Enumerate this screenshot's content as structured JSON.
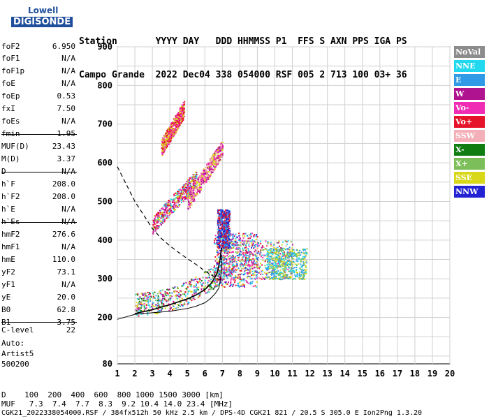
{
  "logo": {
    "line1": "Lowell",
    "line2": "DIGISONDE"
  },
  "header": {
    "labels": "Station       YYYY DAY   DDD HHMMSS P1  FFS S AXN PPS IGA PS",
    "values": "Campo Grande  2022 Dec04 338 054000 RSF 005 2 713 100 03+ 36"
  },
  "params": [
    {
      "key": "foF2",
      "value": "6.950"
    },
    {
      "key": "foF1",
      "value": "N/A"
    },
    {
      "key": "foF1p",
      "value": "N/A"
    },
    {
      "key": "foE",
      "value": "N/A"
    },
    {
      "key": "foEp",
      "value": "0.53"
    },
    {
      "key": "fxI",
      "value": "7.50"
    },
    {
      "key": "foEs",
      "value": "N/A"
    },
    {
      "key": "fmin",
      "value": "1.95"
    },
    {
      "key": "MUF(D)",
      "value": "23.43"
    },
    {
      "key": "M(D)",
      "value": "3.37"
    },
    {
      "key": "D",
      "value": "N/A"
    },
    {
      "key": "h`F",
      "value": "208.0"
    },
    {
      "key": "h`F2",
      "value": "208.0"
    },
    {
      "key": "h`E",
      "value": "N/A"
    },
    {
      "key": "h`Es",
      "value": "N/A"
    },
    {
      "key": "hmF2",
      "value": "276.6"
    },
    {
      "key": "hmF1",
      "value": "N/A"
    },
    {
      "key": "hmE",
      "value": "110.0"
    },
    {
      "key": "yF2",
      "value": "73.1"
    },
    {
      "key": "yF1",
      "value": "N/A"
    },
    {
      "key": "yE",
      "value": "20.0"
    },
    {
      "key": "B0",
      "value": "62.8"
    },
    {
      "key": "B1",
      "value": "3.75"
    },
    {
      "key": "C-level",
      "value": "22"
    }
  ],
  "auto": {
    "line1": "Auto:",
    "line2": "Artist5",
    "line3": "500200"
  },
  "legend": [
    {
      "label": "NoVal",
      "color": "#8c8c8c"
    },
    {
      "label": "NNE",
      "color": "#22d8ee"
    },
    {
      "label": "E",
      "color": "#2f9ae6"
    },
    {
      "label": "W",
      "color": "#b0138f"
    },
    {
      "label": "Vo-",
      "color": "#f02cb4"
    },
    {
      "label": "Vo+",
      "color": "#e6142a"
    },
    {
      "label": "SSW",
      "color": "#f4b0b8"
    },
    {
      "label": "X-",
      "color": "#0f7d12"
    },
    {
      "label": "X+",
      "color": "#7cbf5a"
    },
    {
      "label": "SSE",
      "color": "#d8d818"
    },
    {
      "label": "NNW",
      "color": "#2323d4"
    }
  ],
  "footer": {
    "d_row": "D    100  200  400  600  800 1000 1500 3000 [km]",
    "muf_row": "MUF   7.3  7.4  7.7  8.3  9.2 10.4 14.0 23.4 [MHz]",
    "info": "CGK21_2022338054000.RSF / 384fx512h 50 kHz 2.5 km / DPS-4D CGK21 821 / 20.5 S 305.0 E Ion2Png 1.3.20"
  },
  "chart_data": {
    "type": "scatter",
    "title": "",
    "xlabel": "",
    "ylabel": "",
    "xlim": [
      1,
      20
    ],
    "ylim": [
      80,
      900
    ],
    "x_ticks": [
      1,
      2,
      3,
      4,
      5,
      6,
      7,
      8,
      9,
      10,
      11,
      12,
      13,
      14,
      15,
      16,
      17,
      18,
      19,
      20
    ],
    "y_ticks": [
      80,
      200,
      300,
      400,
      500,
      600,
      700,
      800,
      900
    ],
    "grid": true,
    "dashed_curve": [
      [
        1.0,
        590
      ],
      [
        1.5,
        545
      ],
      [
        2.0,
        500
      ],
      [
        2.5,
        465
      ],
      [
        3.0,
        430
      ],
      [
        3.5,
        405
      ],
      [
        4.0,
        385
      ],
      [
        4.5,
        368
      ],
      [
        5.0,
        352
      ],
      [
        5.5,
        337
      ],
      [
        6.0,
        320
      ],
      [
        6.5,
        306
      ],
      [
        6.9,
        296
      ]
    ],
    "profile_curve": [
      [
        1.0,
        195
      ],
      [
        2.0,
        208
      ],
      [
        3.0,
        212
      ],
      [
        4.0,
        216
      ],
      [
        5.0,
        223
      ],
      [
        5.5,
        229
      ],
      [
        6.0,
        238
      ],
      [
        6.3,
        248
      ],
      [
        6.6,
        262
      ],
      [
        6.8,
        276
      ],
      [
        6.9,
        300
      ],
      [
        6.95,
        330
      ],
      [
        6.98,
        360
      ]
    ],
    "trace_curve": [
      [
        2.0,
        210
      ],
      [
        3.0,
        220
      ],
      [
        4.0,
        233
      ],
      [
        5.0,
        248
      ],
      [
        5.5,
        258
      ],
      [
        6.0,
        272
      ],
      [
        6.4,
        290
      ],
      [
        6.7,
        315
      ],
      [
        6.85,
        345
      ],
      [
        6.95,
        380
      ]
    ],
    "echo_clusters": [
      {
        "x": [
          3.0,
          5.5
        ],
        "y": [
          440,
          560
        ],
        "series": [
          "Vo-",
          "Vo+",
          "SSE",
          "NNE",
          "W"
        ]
      },
      {
        "x": [
          5.0,
          7.0
        ],
        "y": [
          500,
          640
        ],
        "series": [
          "Vo-",
          "W",
          "SSW",
          "SSE"
        ]
      },
      {
        "x": [
          3.5,
          4.8
        ],
        "y": [
          640,
          740
        ],
        "series": [
          "Vo-",
          "SSE",
          "Vo+"
        ]
      },
      {
        "x": [
          2.0,
          7.0
        ],
        "y": [
          205,
          330
        ],
        "series": [
          "X-",
          "X+",
          "SSE",
          "Vo-",
          "Vo+",
          "NNE",
          "W",
          "E"
        ]
      },
      {
        "x": [
          6.5,
          9.0
        ],
        "y": [
          280,
          420
        ],
        "series": [
          "NNW",
          "E",
          "NNE",
          "Vo+",
          "Vo-",
          "W",
          "SSE"
        ]
      },
      {
        "x": [
          7.0,
          11.0
        ],
        "y": [
          300,
          400
        ],
        "series": [
          "W",
          "Vo-",
          "Vo+",
          "SSE",
          "X+",
          "NNE",
          "E",
          "SSW"
        ]
      },
      {
        "x": [
          9.5,
          11.8
        ],
        "y": [
          300,
          380
        ],
        "series": [
          "NNE",
          "E",
          "SSE",
          "X+"
        ]
      },
      {
        "x": [
          6.7,
          7.4
        ],
        "y": [
          380,
          480
        ],
        "series": [
          "NNW",
          "E",
          "Vo+"
        ]
      }
    ]
  }
}
